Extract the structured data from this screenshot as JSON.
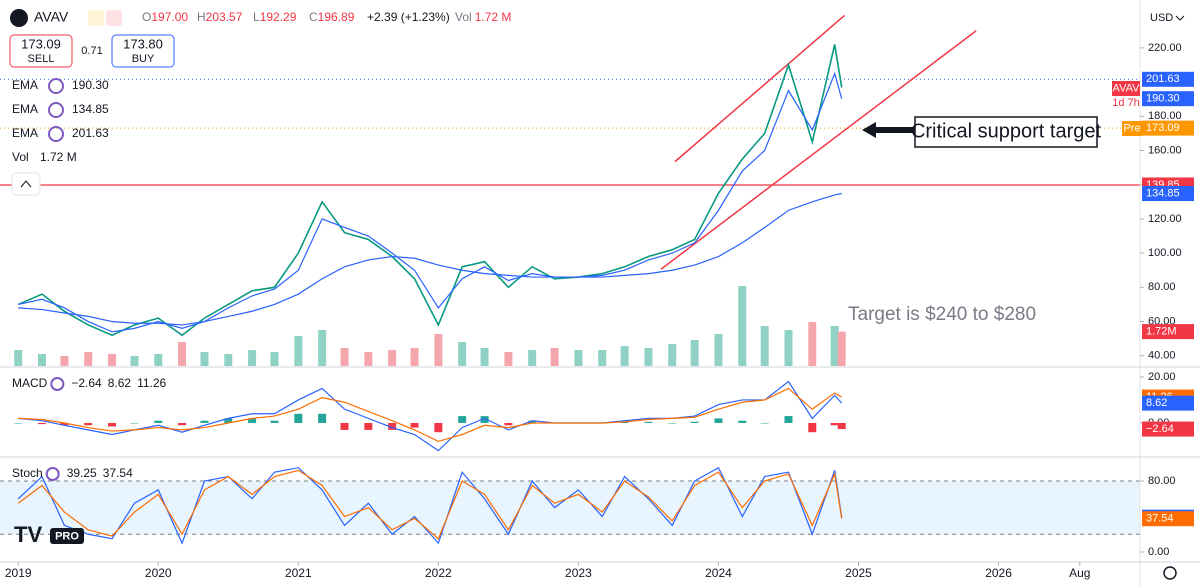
{
  "header": {
    "symbol": "AVAV",
    "ohlc": [
      {
        "label": "O",
        "value": "197.00"
      },
      {
        "label": "H",
        "value": "203.57"
      },
      {
        "label": "L",
        "value": "192.29"
      },
      {
        "label": "C",
        "value": "196.89"
      }
    ],
    "change": "+2.39 (+1.23%)",
    "volume_label": "Vol",
    "volume": "1.72 M"
  },
  "trade": {
    "sell_price": "173.09",
    "sell": "SELL",
    "spread": "0.71",
    "buy_price": "173.80",
    "buy": "BUY"
  },
  "legend": [
    {
      "name": "EMA",
      "value": "190.30"
    },
    {
      "name": "EMA",
      "value": "134.85"
    },
    {
      "name": "EMA",
      "value": "201.63"
    }
  ],
  "volume_legend": {
    "name": "Vol",
    "value": "1.72 M"
  },
  "currency": "USD",
  "current_tag": {
    "symbol": "AVAV",
    "countdown": "1d 7h",
    "session": "Pre"
  },
  "annotations": {
    "callout": "Critical support target",
    "target": "Target is $240 to $280"
  },
  "logo": "PRO",
  "chart_data": [
    {
      "type": "line",
      "x": [
        2019.0,
        2019.17,
        2019.33,
        2019.5,
        2019.67,
        2019.83,
        2020.0,
        2020.17,
        2020.33,
        2020.5,
        2020.67,
        2020.83,
        2021.0,
        2021.17,
        2021.33,
        2021.5,
        2021.67,
        2021.83,
        2022.0,
        2022.17,
        2022.33,
        2022.5,
        2022.67,
        2022.83,
        2023.0,
        2023.17,
        2023.33,
        2023.5,
        2023.67,
        2023.83,
        2024.0,
        2024.17,
        2024.33,
        2024.5,
        2024.67,
        2024.83,
        2024.88
      ],
      "xlim": [
        2018.87,
        2027.01
      ],
      "xticks": [
        2019,
        2020,
        2021,
        2022,
        2023,
        2024,
        2025,
        2026,
        {
          "value": 2026.58,
          "label": "Aug"
        }
      ],
      "ylim": [
        34,
        248
      ],
      "yticks": [
        {
          "value": 40,
          "label": "40.00"
        },
        {
          "value": 60,
          "label": "60.00"
        },
        {
          "value": 80,
          "label": "80.00"
        },
        {
          "value": 100,
          "label": "100.00"
        },
        {
          "value": 120,
          "label": "120.00"
        },
        {
          "value": 140,
          "label": "140.00"
        },
        {
          "value": 160,
          "label": "160.00"
        },
        {
          "value": 180,
          "label": "180.00"
        },
        {
          "value": 220,
          "label": "220.00"
        }
      ],
      "series": [
        {
          "color": "#089981",
          "width": 1.6,
          "values": [
            70,
            76,
            66,
            58,
            52,
            58,
            62,
            52,
            62,
            70,
            78,
            80,
            100,
            130,
            112,
            108,
            98,
            85,
            58,
            92,
            95,
            80,
            92,
            85,
            86,
            88,
            92,
            98,
            102,
            108,
            135,
            155,
            170,
            210,
            165,
            222,
            196.89
          ]
        },
        {
          "color": "#2962ff",
          "width": 1.2,
          "values": [
            70,
            73,
            68,
            60,
            54,
            56,
            60,
            56,
            60,
            68,
            75,
            79,
            90,
            120,
            115,
            110,
            100,
            90,
            68,
            85,
            92,
            84,
            88,
            86,
            86,
            87,
            90,
            96,
            100,
            106,
            125,
            148,
            160,
            195,
            172,
            205,
            190.3
          ]
        },
        {
          "color": "#2962ff",
          "width": 1.2,
          "values": [
            68,
            67,
            65,
            63,
            60,
            59,
            59,
            58,
            60,
            63,
            66,
            70,
            76,
            85,
            92,
            96,
            98,
            97,
            93,
            90,
            88,
            87,
            86,
            86,
            86,
            86,
            87,
            88,
            90,
            93,
            98,
            106,
            115,
            125,
            130,
            134,
            134.85
          ]
        }
      ],
      "volume": {
        "ylim": [
          0,
          5
        ],
        "up_color": "#8fd1c5",
        "down_color": "#f5a6ad",
        "values": [
          0.8,
          0.6,
          0.5,
          0.7,
          0.6,
          0.5,
          0.6,
          1.2,
          0.7,
          0.6,
          0.8,
          0.7,
          1.5,
          1.8,
          0.9,
          0.7,
          0.8,
          0.9,
          1.6,
          1.2,
          0.9,
          0.7,
          0.8,
          0.9,
          0.8,
          0.8,
          1.0,
          0.9,
          1.1,
          1.3,
          1.6,
          4.0,
          2.0,
          1.8,
          2.2,
          2.0,
          1.72
        ],
        "tag": {
          "value": 1.72,
          "label": "1.72M",
          "color": "#f23645"
        }
      },
      "tags": [
        {
          "value": 201.63,
          "label": "201.63",
          "color": "#2962ff",
          "line": "dotted"
        },
        {
          "value": 190.3,
          "label": "190.30",
          "color": "#2962ff"
        },
        {
          "value": 173.09,
          "label": "173.09",
          "color": "#ff9800",
          "line": "dotted"
        },
        {
          "value": 139.85,
          "label": "139.85",
          "color": "#f23645",
          "line": "solid"
        },
        {
          "value": 134.85,
          "label": "134.85",
          "color": "#2962ff"
        }
      ],
      "trend_lines": [
        {
          "x": [
            2023.59,
            2025.84
          ],
          "y": [
            90.6,
            230
          ],
          "color": "#f23645"
        },
        {
          "x": [
            2023.69,
            2024.9
          ],
          "y": [
            153.5,
            239
          ],
          "color": "#f23645"
        }
      ]
    },
    {
      "type": "line",
      "legend": {
        "name": "MACD",
        "values": [
          {
            "text": "−2.64",
            "color": "#f23645"
          },
          {
            "text": "8.62",
            "color": "#2962ff"
          },
          {
            "text": "11.26",
            "color": "#ff6d00"
          }
        ]
      },
      "ylim": [
        -13.9,
        23
      ],
      "yticks": [
        {
          "value": 0,
          "label": "0.00"
        },
        {
          "value": 20,
          "label": "20.00"
        }
      ],
      "series": [
        {
          "kind": "histogram",
          "color": "#26a69a",
          "negative_color": "#f23645",
          "values": [
            0,
            -0.5,
            -1,
            -1,
            -1.5,
            0,
            1,
            -1,
            1,
            2,
            2,
            1,
            4,
            4,
            -3,
            -3,
            -3,
            -2,
            -4,
            3,
            3,
            -1,
            1,
            0,
            0,
            0,
            0.5,
            0.5,
            0,
            0.5,
            2,
            1,
            0,
            3,
            -4,
            -1,
            -2.64
          ]
        },
        {
          "color": "#2962ff",
          "width": 1.2,
          "values": [
            2,
            1,
            -1,
            -3,
            -5,
            -3,
            -1,
            -4,
            -1,
            2,
            4,
            4,
            10,
            15,
            6,
            2,
            -2,
            -5,
            -12,
            -2,
            2,
            -3,
            1,
            0,
            0,
            0,
            1,
            2,
            2,
            3,
            8,
            10,
            10,
            18,
            2,
            12,
            8.62
          ]
        },
        {
          "color": "#ff6d00",
          "width": 1.2,
          "values": [
            2,
            1.5,
            0,
            -2,
            -3.5,
            -3,
            -2,
            -3,
            -2,
            0,
            2,
            3,
            6,
            11,
            9,
            5,
            1,
            -3,
            -8,
            -5,
            -1,
            -2,
            0,
            0,
            0,
            0,
            0.5,
            1.5,
            2,
            2.5,
            6,
            9,
            10,
            15,
            6,
            13,
            11.26
          ]
        }
      ],
      "tags": [
        {
          "value": 11.26,
          "label": "11.26",
          "color": "#ff6d00"
        },
        {
          "value": 8.62,
          "label": "8.62",
          "color": "#2962ff"
        },
        {
          "value": -2.64,
          "label": "−2.64",
          "color": "#f23645"
        }
      ]
    },
    {
      "type": "line",
      "legend": {
        "name": "Stoch",
        "values": [
          {
            "text": "39.25",
            "color": "#2962ff"
          },
          {
            "text": "37.54",
            "color": "#ff6d00"
          }
        ]
      },
      "ylim": [
        -9,
        103.7
      ],
      "yticks": [
        {
          "value": 0,
          "label": "0.00"
        },
        {
          "value": 80,
          "label": "80.00"
        }
      ],
      "band": [
        20,
        80
      ],
      "series": [
        {
          "color": "#2962ff",
          "width": 1.2,
          "values": [
            60,
            85,
            30,
            20,
            15,
            55,
            70,
            10,
            80,
            85,
            60,
            90,
            95,
            70,
            30,
            55,
            20,
            40,
            10,
            90,
            60,
            20,
            80,
            50,
            70,
            40,
            85,
            60,
            30,
            80,
            95,
            40,
            85,
            90,
            20,
            92,
            39.25
          ]
        },
        {
          "color": "#ff6d00",
          "width": 1.2,
          "values": [
            55,
            75,
            45,
            25,
            18,
            45,
            65,
            20,
            70,
            85,
            65,
            85,
            92,
            75,
            40,
            50,
            25,
            38,
            15,
            80,
            65,
            25,
            75,
            55,
            65,
            45,
            80,
            62,
            35,
            75,
            90,
            50,
            80,
            88,
            30,
            88,
            37.54
          ]
        }
      ],
      "tags": [
        {
          "value": 39.25,
          "label": "39.25",
          "color": "#2962ff"
        },
        {
          "value": 37.54,
          "label": "37.54",
          "color": "#ff6d00"
        }
      ]
    }
  ]
}
